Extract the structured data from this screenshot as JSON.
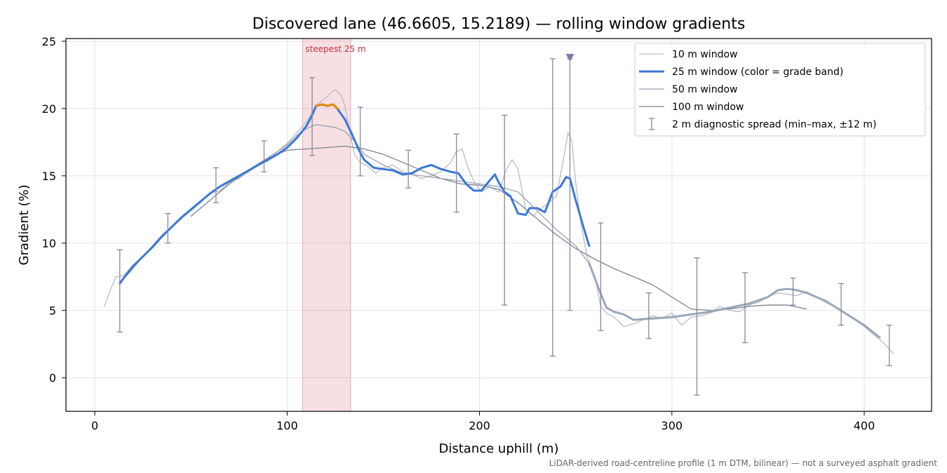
{
  "chart_data": {
    "type": "line",
    "title": "Discovered lane (46.6605, 15.2189) — rolling window gradients",
    "xlabel": "Distance uphill (m)",
    "ylabel": "Gradient (%)",
    "xlim": [
      -15,
      435
    ],
    "ylim": [
      -2.5,
      25.2
    ],
    "xticks": [
      0,
      100,
      200,
      300,
      400
    ],
    "yticks": [
      0,
      5,
      10,
      15,
      20,
      25
    ],
    "grid": true,
    "legend_position": "top-right",
    "footnote": "LiDAR-derived road-centreline profile (1 m DTM, bilinear) — not a surveyed asphalt gradient",
    "highlight": {
      "label": "steepest 25 m",
      "x_range": [
        108,
        133
      ],
      "color": "#d9606d"
    },
    "marker": {
      "x": 247,
      "y": 23.8,
      "shape": "triangle-down",
      "color": "#8a74a8"
    },
    "series": [
      {
        "name": "10 m window",
        "color": "#b7bcc6",
        "points": [
          [
            5,
            5.3
          ],
          [
            8,
            6.5
          ],
          [
            11,
            7.5
          ],
          [
            15,
            7.6
          ],
          [
            20,
            8.4
          ],
          [
            25,
            9.0
          ],
          [
            30,
            9.8
          ],
          [
            35,
            10.6
          ],
          [
            40,
            11.2
          ],
          [
            45,
            11.8
          ],
          [
            50,
            12.4
          ],
          [
            55,
            13.0
          ],
          [
            60,
            13.7
          ],
          [
            65,
            13.9
          ],
          [
            70,
            14.5
          ],
          [
            75,
            14.8
          ],
          [
            80,
            15.3
          ],
          [
            85,
            15.8
          ],
          [
            90,
            16.1
          ],
          [
            95,
            16.8
          ],
          [
            100,
            17.4
          ],
          [
            105,
            18.2
          ],
          [
            110,
            19.0
          ],
          [
            115,
            20.2
          ],
          [
            120,
            20.8
          ],
          [
            123,
            21.2
          ],
          [
            125,
            21.4
          ],
          [
            128,
            21.0
          ],
          [
            130,
            20.2
          ],
          [
            133,
            18.0
          ],
          [
            135,
            16.6
          ],
          [
            138,
            16.0
          ],
          [
            142,
            15.7
          ],
          [
            146,
            15.2
          ],
          [
            150,
            15.6
          ],
          [
            155,
            15.8
          ],
          [
            160,
            15.3
          ],
          [
            165,
            15.1
          ],
          [
            170,
            14.8
          ],
          [
            175,
            15.0
          ],
          [
            180,
            15.3
          ],
          [
            185,
            16.0
          ],
          [
            188,
            16.8
          ],
          [
            191,
            17.0
          ],
          [
            194,
            15.6
          ],
          [
            197,
            14.6
          ],
          [
            201,
            13.8
          ],
          [
            205,
            14.2
          ],
          [
            210,
            13.8
          ],
          [
            214,
            15.5
          ],
          [
            217,
            16.2
          ],
          [
            220,
            15.5
          ],
          [
            224,
            12.5
          ],
          [
            228,
            12.0
          ],
          [
            232,
            12.6
          ],
          [
            236,
            13.0
          ],
          [
            240,
            13.5
          ],
          [
            244,
            16.5
          ],
          [
            246,
            18.2
          ],
          [
            248,
            17.6
          ],
          [
            250,
            14.5
          ],
          [
            253,
            11.2
          ],
          [
            256,
            9.0
          ],
          [
            260,
            7.5
          ],
          [
            263,
            5.3
          ],
          [
            266,
            4.8
          ],
          [
            270,
            4.5
          ],
          [
            275,
            3.8
          ],
          [
            280,
            4.0
          ],
          [
            285,
            4.3
          ],
          [
            290,
            4.6
          ],
          [
            295,
            4.4
          ],
          [
            300,
            4.8
          ],
          [
            305,
            3.9
          ],
          [
            310,
            4.5
          ],
          [
            315,
            4.6
          ],
          [
            320,
            4.8
          ],
          [
            325,
            5.3
          ],
          [
            330,
            5.0
          ],
          [
            335,
            4.9
          ],
          [
            340,
            5.4
          ],
          [
            345,
            5.6
          ],
          [
            350,
            6.0
          ],
          [
            355,
            6.3
          ],
          [
            360,
            6.2
          ],
          [
            365,
            6.1
          ],
          [
            370,
            6.4
          ],
          [
            375,
            6.0
          ],
          [
            380,
            5.6
          ],
          [
            385,
            5.2
          ],
          [
            390,
            4.8
          ],
          [
            395,
            4.3
          ],
          [
            400,
            3.8
          ],
          [
            405,
            3.2
          ],
          [
            410,
            2.6
          ],
          [
            415,
            1.8
          ]
        ]
      },
      {
        "name": "25 m window (color = grade band)",
        "color": "#3a78d6",
        "points": [
          [
            13,
            7.0
          ],
          [
            15,
            7.4
          ],
          [
            20,
            8.3
          ],
          [
            25,
            9.0
          ],
          [
            30,
            9.7
          ],
          [
            35,
            10.5
          ],
          [
            40,
            11.2
          ],
          [
            45,
            11.9
          ],
          [
            50,
            12.5
          ],
          [
            55,
            13.1
          ],
          [
            60,
            13.7
          ],
          [
            65,
            14.2
          ],
          [
            70,
            14.6
          ],
          [
            75,
            15.0
          ],
          [
            80,
            15.4
          ],
          [
            85,
            15.8
          ],
          [
            90,
            16.2
          ],
          [
            95,
            16.6
          ],
          [
            100,
            17.1
          ],
          [
            105,
            17.8
          ],
          [
            110,
            18.7
          ],
          [
            113,
            19.5
          ],
          [
            115,
            20.2
          ],
          [
            118,
            20.3
          ],
          [
            121,
            20.2
          ],
          [
            124,
            20.3
          ],
          [
            126,
            20.0
          ],
          [
            130,
            19.2
          ],
          [
            134,
            18.0
          ],
          [
            137,
            17.0
          ],
          [
            140,
            16.2
          ],
          [
            145,
            15.6
          ],
          [
            150,
            15.5
          ],
          [
            155,
            15.4
          ],
          [
            160,
            15.1
          ],
          [
            165,
            15.2
          ],
          [
            170,
            15.6
          ],
          [
            175,
            15.8
          ],
          [
            180,
            15.5
          ],
          [
            185,
            15.3
          ],
          [
            189,
            15.2
          ],
          [
            193,
            14.4
          ],
          [
            197,
            13.9
          ],
          [
            201,
            13.9
          ],
          [
            205,
            14.6
          ],
          [
            208,
            15.1
          ],
          [
            210,
            14.5
          ],
          [
            213,
            13.8
          ],
          [
            216,
            13.5
          ],
          [
            220,
            12.2
          ],
          [
            224,
            12.1
          ],
          [
            226,
            12.6
          ],
          [
            230,
            12.6
          ],
          [
            234,
            12.3
          ],
          [
            238,
            13.8
          ],
          [
            242,
            14.2
          ],
          [
            245,
            14.9
          ],
          [
            247,
            14.8
          ],
          [
            250,
            13.2
          ],
          [
            254,
            11.2
          ],
          [
            257,
            9.8
          ]
        ]
      },
      {
        "name": "50 m window",
        "color": "#9aa2ae",
        "points": [
          [
            13,
            7.1
          ],
          [
            18,
            7.8
          ],
          [
            25,
            9.0
          ],
          [
            35,
            10.6
          ],
          [
            45,
            11.9
          ],
          [
            55,
            13.1
          ],
          [
            65,
            14.2
          ],
          [
            75,
            15.0
          ],
          [
            85,
            15.9
          ],
          [
            95,
            16.8
          ],
          [
            100,
            17.3
          ],
          [
            105,
            18.0
          ],
          [
            110,
            18.5
          ],
          [
            115,
            18.8
          ],
          [
            120,
            18.7
          ],
          [
            125,
            18.6
          ],
          [
            130,
            18.3
          ],
          [
            135,
            17.6
          ],
          [
            140,
            16.6
          ],
          [
            150,
            15.8
          ],
          [
            160,
            15.2
          ],
          [
            170,
            15.0
          ],
          [
            180,
            14.8
          ],
          [
            190,
            14.6
          ],
          [
            200,
            14.4
          ],
          [
            210,
            14.2
          ],
          [
            220,
            13.8
          ],
          [
            230,
            12.4
          ],
          [
            240,
            11.0
          ],
          [
            250,
            9.8
          ],
          [
            257,
            8.5
          ],
          [
            262,
            6.6
          ],
          [
            266,
            5.2
          ],
          [
            270,
            4.9
          ],
          [
            275,
            4.7
          ],
          [
            280,
            4.3
          ],
          [
            290,
            4.4
          ],
          [
            300,
            4.5
          ],
          [
            310,
            4.7
          ],
          [
            320,
            4.9
          ],
          [
            330,
            5.2
          ],
          [
            340,
            5.5
          ],
          [
            350,
            6.0
          ],
          [
            355,
            6.5
          ],
          [
            360,
            6.6
          ],
          [
            365,
            6.5
          ],
          [
            370,
            6.3
          ],
          [
            380,
            5.7
          ],
          [
            390,
            4.8
          ],
          [
            400,
            3.9
          ],
          [
            408,
            3.0
          ]
        ]
      },
      {
        "name": "100 m window",
        "color": "#7c838e",
        "points": [
          [
            50,
            12.0
          ],
          [
            60,
            13.2
          ],
          [
            70,
            14.4
          ],
          [
            80,
            15.4
          ],
          [
            90,
            16.3
          ],
          [
            100,
            16.9
          ],
          [
            110,
            17.0
          ],
          [
            120,
            17.1
          ],
          [
            130,
            17.2
          ],
          [
            140,
            17.0
          ],
          [
            150,
            16.6
          ],
          [
            160,
            16.0
          ],
          [
            170,
            15.4
          ],
          [
            180,
            14.8
          ],
          [
            190,
            14.4
          ],
          [
            200,
            14.3
          ],
          [
            210,
            14.0
          ],
          [
            220,
            13.0
          ],
          [
            230,
            11.8
          ],
          [
            240,
            10.6
          ],
          [
            250,
            9.6
          ],
          [
            260,
            8.8
          ],
          [
            270,
            8.1
          ],
          [
            280,
            7.5
          ],
          [
            290,
            6.9
          ],
          [
            300,
            6.0
          ],
          [
            310,
            5.1
          ],
          [
            320,
            5.0
          ],
          [
            330,
            5.1
          ],
          [
            340,
            5.3
          ],
          [
            350,
            5.4
          ],
          [
            360,
            5.4
          ],
          [
            370,
            5.1
          ]
        ]
      }
    ],
    "diagnostic_spread": {
      "name": "2 m diagnostic spread (min–max, ±12 m)",
      "color": "#8a84aa",
      "bars": [
        [
          13,
          3.4,
          9.5
        ],
        [
          38,
          10.0,
          12.2
        ],
        [
          63,
          13.0,
          15.6
        ],
        [
          88,
          15.3,
          17.6
        ],
        [
          113,
          16.5,
          22.3
        ],
        [
          138,
          15.0,
          20.1
        ],
        [
          163,
          14.1,
          16.9
        ],
        [
          188,
          12.3,
          18.1
        ],
        [
          213,
          5.4,
          19.5
        ],
        [
          238,
          1.6,
          23.7
        ],
        [
          247,
          5.0,
          23.7
        ],
        [
          263,
          3.5,
          11.5
        ],
        [
          288,
          2.9,
          6.3
        ],
        [
          313,
          -1.3,
          8.9
        ],
        [
          338,
          2.6,
          7.8
        ],
        [
          363,
          5.4,
          7.4
        ],
        [
          388,
          3.9,
          7.0
        ],
        [
          413,
          0.9,
          3.9
        ]
      ]
    }
  }
}
